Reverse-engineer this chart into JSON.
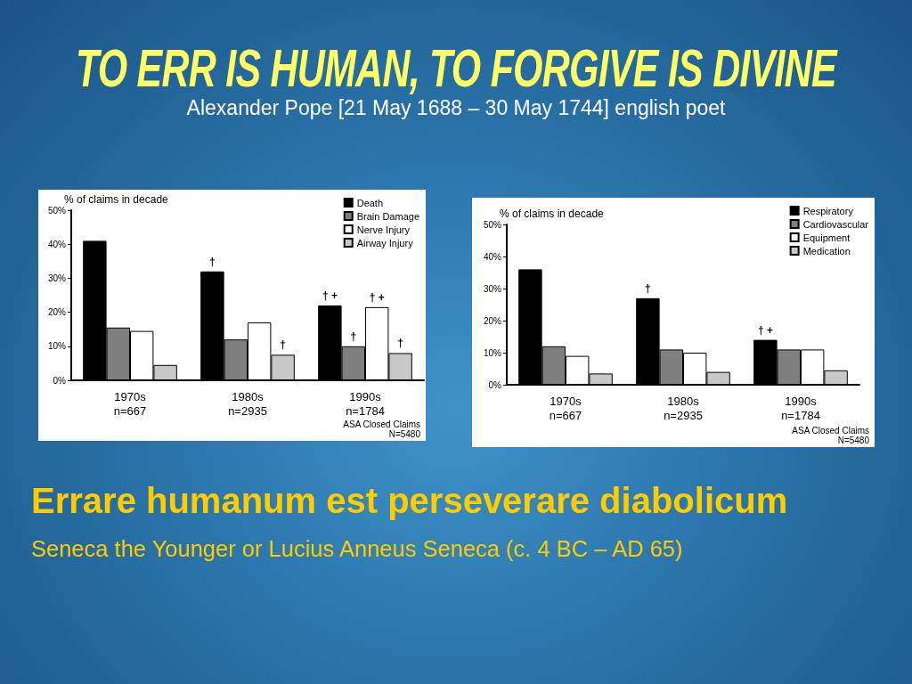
{
  "chart_data": [
    {
      "type": "other",
      "title": "TO ERR IS HUMAN, TO FORGIVE IS DIVINE",
      "subtitle": "Alexander Pope [21 May 1688 – 30 May 1744] english poet"
    },
    {
      "type": "bar",
      "ylabel": "% of claims in decade",
      "categories": [
        "1970s\nn=667",
        "1980s\nn=2935",
        "1990s\nn=1784"
      ],
      "series": [
        {
          "name": "Death",
          "color": "#000000",
          "values": [
            41,
            32,
            22
          ],
          "value_labels": [
            null,
            "†",
            "† +"
          ]
        },
        {
          "name": "Brain Damage",
          "color": "#7f7f7f",
          "values": [
            15.5,
            12,
            10
          ],
          "value_labels": [
            null,
            null,
            "†"
          ]
        },
        {
          "name": "Nerve Injury",
          "color": "#ffffff",
          "values": [
            14.5,
            17,
            21.5
          ],
          "value_labels": [
            null,
            null,
            "† +"
          ]
        },
        {
          "name": "Airway Injury",
          "color": "#c8c8c8",
          "values": [
            4.5,
            7.5,
            8
          ],
          "value_labels": [
            null,
            "†",
            "†"
          ]
        }
      ],
      "ylim": [
        0,
        50
      ],
      "yticks": [
        {
          "value": 0,
          "label": "0%"
        },
        {
          "value": 10,
          "label": "10%"
        },
        {
          "value": 20,
          "label": "20%"
        },
        {
          "value": 30,
          "label": "30%"
        },
        {
          "value": 40,
          "label": "40%"
        },
        {
          "value": 50,
          "label": "50%"
        }
      ],
      "grid": false,
      "legend": "top right",
      "annotations": [
        "ASA Closed Claims",
        "N=5480"
      ]
    },
    {
      "type": "bar",
      "ylabel": "% of claims in decade",
      "categories": [
        "1970s\nn=667",
        "1980s\nn=2935",
        "1990s\nn=1784"
      ],
      "series": [
        {
          "name": "Respiratory",
          "color": "#000000",
          "values": [
            36,
            27,
            14
          ],
          "value_labels": [
            null,
            "†",
            "† +"
          ]
        },
        {
          "name": "Cardiovascular",
          "color": "#7f7f7f",
          "values": [
            12,
            11,
            11
          ]
        },
        {
          "name": "Equipment",
          "color": "#ffffff",
          "values": [
            9,
            10,
            11
          ]
        },
        {
          "name": "Medication",
          "color": "#c8c8c8",
          "values": [
            3.5,
            4,
            4.5
          ]
        }
      ],
      "ylim": [
        0,
        50
      ],
      "yticks": [
        {
          "value": 0,
          "label": "0%"
        },
        {
          "value": 10,
          "label": "10%"
        },
        {
          "value": 20,
          "label": "20%"
        },
        {
          "value": 30,
          "label": "30%"
        },
        {
          "value": 40,
          "label": "40%"
        },
        {
          "value": 50,
          "label": "50%"
        }
      ],
      "grid": false,
      "legend": "top right",
      "annotations": [
        "ASA Closed Claims",
        "N=5480"
      ]
    },
    {
      "type": "other",
      "title": "Errare humanum est perseverare diabolicum",
      "subtitle": "Seneca the Younger or Lucius Anneus Seneca (c. 4 BC – AD 65)"
    }
  ]
}
